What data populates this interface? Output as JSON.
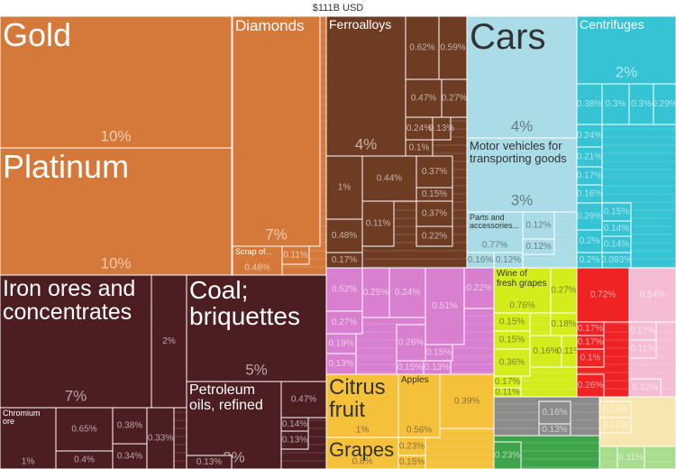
{
  "chart_data": {
    "type": "treemap",
    "title": "$111B USD",
    "groups": [
      {
        "color": "#d5793a",
        "items": [
          {
            "name": "Gold",
            "value": 10,
            "value_label": "10%"
          },
          {
            "name": "Platinum",
            "value": 10,
            "value_label": "10%"
          },
          {
            "name": "Diamonds",
            "value": 7,
            "value_label": "7%"
          },
          {
            "name": "Scrap of...",
            "value": 0.48,
            "value_label": "0.48%"
          },
          {
            "value": 0.11,
            "value_label": "0.11%"
          }
        ]
      },
      {
        "color": "#4c1d21",
        "items": [
          {
            "name": "Iron ores and concentrates",
            "value": 7,
            "value_label": "7%"
          },
          {
            "value": 2,
            "value_label": "2%"
          },
          {
            "name": "Coal; briquettes",
            "value": 5,
            "value_label": "5%"
          },
          {
            "name": "Petroleum oils, refined",
            "value": 2,
            "value_label": "2%"
          },
          {
            "name": "Chromium ore",
            "value": 1,
            "value_label": "1%"
          },
          {
            "value": 0.65,
            "value_label": "0.65%"
          },
          {
            "value": 0.4,
            "value_label": "0.4%"
          },
          {
            "value": 0.38,
            "value_label": "0.38%"
          },
          {
            "value": 0.34,
            "value_label": "0.34%"
          },
          {
            "value": 0.33,
            "value_label": "0.33%"
          },
          {
            "value": 0.47,
            "value_label": "0.47%"
          },
          {
            "value": 0.14,
            "value_label": "0.14%"
          },
          {
            "value": 0.13,
            "value_label": "0.13%"
          },
          {
            "value": 0.13,
            "value_label": "0.13%"
          }
        ]
      },
      {
        "color": "#6e3b23",
        "items": [
          {
            "name": "Ferroalloys",
            "value": 4,
            "value_label": "4%"
          },
          {
            "value": 0.62,
            "value_label": "0.62%"
          },
          {
            "value": 0.59,
            "value_label": "0.59%"
          },
          {
            "value": 0.47,
            "value_label": "0.47%"
          },
          {
            "value": 0.27,
            "value_label": "0.27%"
          },
          {
            "value": 0.24,
            "value_label": "0.24%"
          },
          {
            "value": 0.1,
            "value_label": "0.1%"
          },
          {
            "value": 0.13,
            "value_label": "0.13%"
          },
          {
            "value": 1,
            "value_label": "1%"
          },
          {
            "value": 0.44,
            "value_label": "0.44%"
          },
          {
            "value": 0.37,
            "value_label": "0.37%"
          },
          {
            "value": 0.15,
            "value_label": "0.15%"
          },
          {
            "value": 0.11,
            "value_label": "0.11%"
          },
          {
            "value": 0.37,
            "value_label": "0.37%"
          },
          {
            "value": 0.22,
            "value_label": "0.22%"
          },
          {
            "value": 0.48,
            "value_label": "0.48%"
          },
          {
            "value": 0.17,
            "value_label": "0.17%"
          }
        ]
      },
      {
        "color": "#a9dce6",
        "items": [
          {
            "name": "Cars",
            "value": 4,
            "value_label": "4%"
          },
          {
            "name": "Motor vehicles for transporting goods",
            "value": 3,
            "value_label": "3%"
          },
          {
            "name": "Parts and accessories...",
            "value": 0.77,
            "value_label": "0.77%"
          },
          {
            "value": 0.12,
            "value_label": "0.12%"
          },
          {
            "value": 0.12,
            "value_label": "0.12%"
          },
          {
            "value": 0.16,
            "value_label": "0.16%"
          },
          {
            "value": 0.12,
            "value_label": "0.12%"
          }
        ]
      },
      {
        "color": "#36c3d3",
        "items": [
          {
            "name": "Centrifuges",
            "value": 2,
            "value_label": "2%"
          },
          {
            "value": 0.38,
            "value_label": "0.38%"
          },
          {
            "value": 0.3,
            "value_label": "0.3%"
          },
          {
            "value": 0.3,
            "value_label": "0.3%"
          },
          {
            "value": 0.29,
            "value_label": "0.29%"
          },
          {
            "value": 0.24,
            "value_label": "0.24%"
          },
          {
            "value": 0.21,
            "value_label": "0.21%"
          },
          {
            "value": 0.17,
            "value_label": "0.17%"
          },
          {
            "value": 0.16,
            "value_label": "0.16%"
          },
          {
            "value": 0.29,
            "value_label": "0.29%"
          },
          {
            "value": 0.2,
            "value_label": "0.2%"
          },
          {
            "value": 0.15,
            "value_label": "0.15%"
          },
          {
            "value": 0.14,
            "value_label": "0.14%"
          },
          {
            "value": 0.14,
            "value_label": "0.14%"
          },
          {
            "value": 0.2,
            "value_label": "0.2%"
          },
          {
            "value": 0.093,
            "value_label": "0.093%"
          }
        ]
      },
      {
        "color": "#d880cf",
        "items": [
          {
            "value": 0.52,
            "value_label": "0.52%"
          },
          {
            "value": 0.25,
            "value_label": "0.25%"
          },
          {
            "value": 0.24,
            "value_label": "0.24%"
          },
          {
            "value": 0.22,
            "value_label": "0.22%"
          },
          {
            "value": 0.51,
            "value_label": "0.51%"
          },
          {
            "value": 0.27,
            "value_label": "0.27%"
          },
          {
            "value": 0.19,
            "value_label": "0.19%"
          },
          {
            "value": 0.13,
            "value_label": "0.13%"
          },
          {
            "value": 0.26,
            "value_label": "0.26%"
          },
          {
            "value": 0.15,
            "value_label": "0.15%"
          },
          {
            "value": 0.15,
            "value_label": "0.15%"
          },
          {
            "value": 0.13,
            "value_label": "0.13%"
          }
        ]
      },
      {
        "color": "#d4ec1c",
        "items": [
          {
            "name": "Wine of fresh grapes",
            "value": 0.76,
            "value_label": "0.76%"
          },
          {
            "value": 0.27,
            "value_label": "0.27%"
          },
          {
            "value": 0.15,
            "value_label": "0.15%"
          },
          {
            "value": 0.18,
            "value_label": "0.18%"
          },
          {
            "value": 0.15,
            "value_label": "0.15%"
          },
          {
            "value": 0.16,
            "value_label": "0.16%"
          },
          {
            "value": 0.11,
            "value_label": "0.11%"
          },
          {
            "value": 0.36,
            "value_label": "0.36%"
          },
          {
            "value": 0.17,
            "value_label": "0.17%"
          },
          {
            "value": 0.11,
            "value_label": "0.11%"
          }
        ]
      },
      {
        "color": "#ef2323",
        "items": [
          {
            "value": 0.72,
            "value_label": "0.72%"
          },
          {
            "value": 0.17,
            "value_label": "0.17%"
          },
          {
            "value": 0.17,
            "value_label": "0.17%"
          },
          {
            "value": 0.1,
            "value_label": "0.1%"
          },
          {
            "value": 0.26,
            "value_label": "0.26%"
          }
        ]
      },
      {
        "color": "#f5bdd3",
        "items": [
          {
            "value": 0.54,
            "value_label": "0.54%"
          },
          {
            "value": 0.17,
            "value_label": "0.17%"
          },
          {
            "value": 0.11,
            "value_label": "0.11%"
          },
          {
            "value": 0.32,
            "value_label": "0.32%"
          }
        ]
      },
      {
        "color": "#f5c13b",
        "items": [
          {
            "name": "Citrus fruit",
            "value": 1,
            "value_label": "1%"
          },
          {
            "name": "Apples",
            "value": 0.56,
            "value_label": "0.56%"
          },
          {
            "value": 0.39,
            "value_label": "0.39%"
          },
          {
            "name": "Grapes",
            "value": 0.8,
            "value_label": "0.8%"
          },
          {
            "value": 0.23,
            "value_label": "0.23%"
          },
          {
            "value": 0.15,
            "value_label": "0.15%"
          }
        ]
      },
      {
        "color": "#8c8c8c",
        "items": [
          {
            "value": 0.16,
            "value_label": "0.16%"
          },
          {
            "value": 0.13,
            "value_label": "0.13%"
          }
        ]
      },
      {
        "color": "#3da44a",
        "items": [
          {
            "value": 0.23,
            "value_label": "0.23%"
          }
        ]
      },
      {
        "color": "#f8e6b0",
        "items": [
          {
            "value": 0.12,
            "value_label": "0.12%"
          },
          {
            "value": 0.11,
            "value_label": "0.11%"
          }
        ]
      },
      {
        "color": "#a8dd8e",
        "items": [
          {
            "value": 0.11,
            "value_label": "0.11%"
          }
        ]
      }
    ]
  }
}
